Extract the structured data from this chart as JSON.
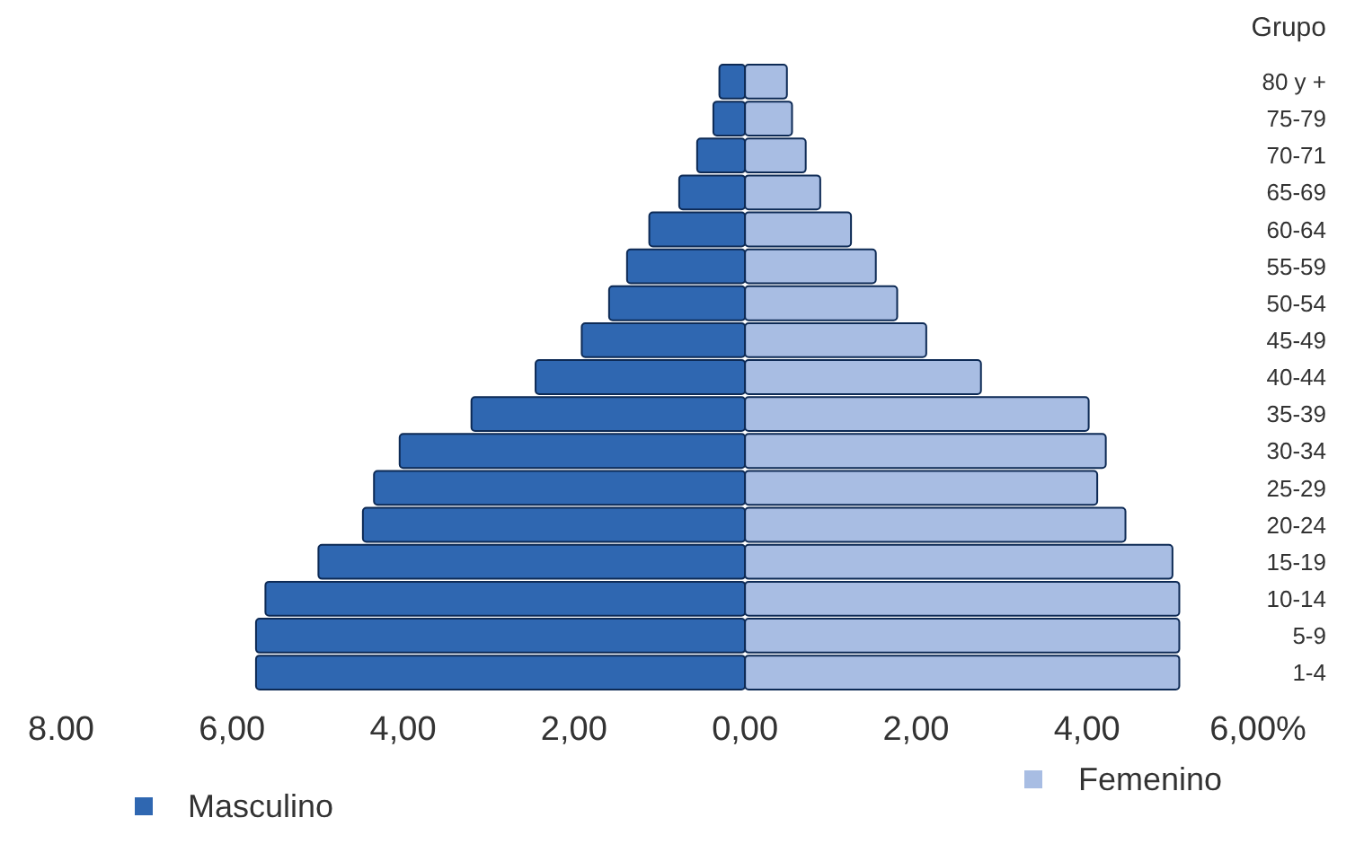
{
  "chart_data": {
    "type": "bar",
    "orientation": "horizontal",
    "ylabel": "Grupo",
    "categories": [
      "80 y +",
      "75-79",
      "70-71",
      "65-69",
      "60-64",
      "55-59",
      "50-54",
      "45-49",
      "40-44",
      "35-39",
      "30-34",
      "25-29",
      "20-24",
      "15-19",
      "10-14",
      "5-9",
      "1-4"
    ],
    "series": [
      {
        "name": "Masculino",
        "color": "#2f67b1",
        "values": [
          -0.3,
          -0.37,
          -0.56,
          -0.77,
          -1.12,
          -1.38,
          -1.59,
          -1.91,
          -2.45,
          -3.2,
          -4.04,
          -4.34,
          -4.47,
          -4.99,
          -5.61,
          -5.72,
          -5.72
        ]
      },
      {
        "name": "Femenino",
        "color": "#a8bde3",
        "values": [
          0.49,
          0.55,
          0.71,
          0.88,
          1.24,
          1.53,
          1.78,
          2.12,
          2.76,
          4.02,
          4.22,
          4.12,
          4.45,
          5.0,
          5.08,
          5.08,
          5.08
        ]
      }
    ],
    "xlim": [
      -8,
      6
    ],
    "xticks": [
      {
        "value": -8,
        "label": "8.00"
      },
      {
        "value": -6,
        "label": "6,00"
      },
      {
        "value": -4,
        "label": "4,00"
      },
      {
        "value": -2,
        "label": "2,00"
      },
      {
        "value": 0,
        "label": "0,00"
      },
      {
        "value": 2,
        "label": "2,00"
      },
      {
        "value": 4,
        "label": "4,00"
      },
      {
        "value": 6,
        "label": "6,00%"
      }
    ],
    "stacked": true,
    "grid": false,
    "legend": "bottom"
  }
}
